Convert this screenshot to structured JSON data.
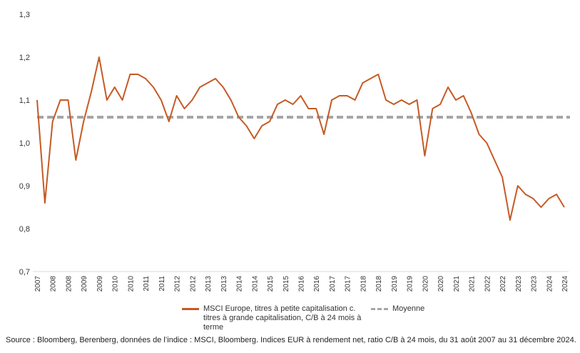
{
  "chart_data": {
    "type": "line",
    "categories": [
      "2007",
      null,
      "2008",
      null,
      "2008",
      null,
      "2009",
      null,
      "2009",
      null,
      "2010",
      null,
      "2010",
      null,
      "2011",
      null,
      "2011",
      null,
      "2012",
      null,
      "2012",
      null,
      "2013",
      null,
      "2013",
      null,
      "2014",
      null,
      "2014",
      null,
      "2015",
      null,
      "2015",
      null,
      "2016",
      null,
      "2016",
      null,
      "2017",
      null,
      "2017",
      null,
      "2018",
      null,
      "2018",
      null,
      "2019",
      null,
      "2019",
      null,
      "2020",
      null,
      "2020",
      null,
      "2021",
      null,
      "2021",
      null,
      "2022",
      null,
      "2022",
      null,
      "2023",
      null,
      "2023",
      null,
      "2024",
      null,
      "2024"
    ],
    "series": [
      {
        "name": "MSCI Europe, titres à petite capitalisation c. titres à grande capitalisation, C/B à 24 mois à terme",
        "color": "#c55a24",
        "values": [
          1.1,
          0.86,
          1.05,
          1.1,
          1.1,
          0.96,
          1.05,
          1.12,
          1.2,
          1.1,
          1.13,
          1.1,
          1.16,
          1.16,
          1.15,
          1.13,
          1.1,
          1.05,
          1.11,
          1.08,
          1.1,
          1.13,
          1.14,
          1.15,
          1.13,
          1.1,
          1.06,
          1.04,
          1.01,
          1.04,
          1.05,
          1.09,
          1.1,
          1.09,
          1.11,
          1.08,
          1.08,
          1.02,
          1.1,
          1.11,
          1.11,
          1.1,
          1.14,
          1.15,
          1.16,
          1.1,
          1.09,
          1.1,
          1.09,
          1.1,
          0.97,
          1.08,
          1.09,
          1.13,
          1.1,
          1.11,
          1.07,
          1.02,
          1.0,
          0.96,
          0.92,
          0.82,
          0.9,
          0.88,
          0.87,
          0.85,
          0.87,
          0.88,
          0.85
        ]
      }
    ],
    "average": {
      "name": "Moyenne",
      "value": 1.06,
      "color": "#a6a6a6"
    },
    "ylim": [
      0.7,
      1.3
    ],
    "yticks": [
      {
        "value": 0.7,
        "label": "0,7"
      },
      {
        "value": 0.8,
        "label": "0,8"
      },
      {
        "value": 0.9,
        "label": "0,9"
      },
      {
        "value": 1.0,
        "label": "1,0"
      },
      {
        "value": 1.1,
        "label": "1,1"
      },
      {
        "value": 1.2,
        "label": "1,2"
      },
      {
        "value": 1.3,
        "label": "1,3"
      }
    ],
    "grid": false,
    "source": "Source : Bloomberg, Berenberg, données de l’indice : MSCI, Bloomberg. Indices EUR à rendement net, ratio C/B à 24 mois, du 31 août 2007 au 31 décembre 2024."
  }
}
